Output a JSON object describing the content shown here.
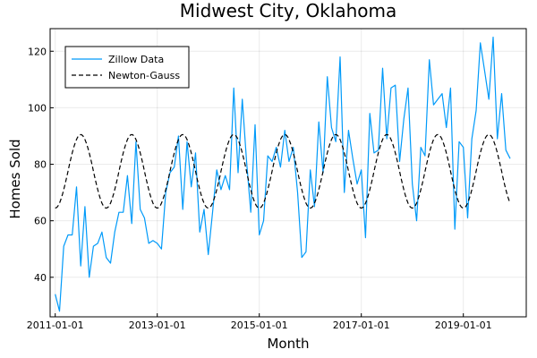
{
  "chart_data": {
    "type": "line",
    "title": "Midwest City, Oklahoma",
    "xlabel": "Month",
    "ylabel": "Homes Sold",
    "x_start": "2011-01",
    "x_end": "2019-12",
    "xticks": [
      "2011-01-01",
      "2013-01-01",
      "2015-01-01",
      "2017-01-01",
      "2019-01-01"
    ],
    "yticks": [
      40,
      60,
      80,
      100,
      120
    ],
    "ylim": [
      26,
      128
    ],
    "grid": true,
    "legend": "top-left",
    "series": [
      {
        "name": "Zillow Data",
        "color": "#009af9",
        "dash": "solid",
        "x": [
          "2011-01",
          "2011-02",
          "2011-03",
          "2011-04",
          "2011-05",
          "2011-06",
          "2011-07",
          "2011-08",
          "2011-09",
          "2011-10",
          "2011-11",
          "2011-12",
          "2012-01",
          "2012-02",
          "2012-03",
          "2012-04",
          "2012-05",
          "2012-06",
          "2012-07",
          "2012-08",
          "2012-09",
          "2012-10",
          "2012-11",
          "2012-12",
          "2013-01",
          "2013-02",
          "2013-03",
          "2013-04",
          "2013-05",
          "2013-06",
          "2013-07",
          "2013-08",
          "2013-09",
          "2013-10",
          "2013-11",
          "2013-12",
          "2014-01",
          "2014-02",
          "2014-03",
          "2014-04",
          "2014-05",
          "2014-06",
          "2014-07",
          "2014-08",
          "2014-09",
          "2014-10",
          "2014-11",
          "2014-12",
          "2015-01",
          "2015-02",
          "2015-03",
          "2015-04",
          "2015-05",
          "2015-06",
          "2015-07",
          "2015-08",
          "2015-09",
          "2015-10",
          "2015-11",
          "2015-12",
          "2016-01",
          "2016-02",
          "2016-03",
          "2016-04",
          "2016-05",
          "2016-06",
          "2016-07",
          "2016-08",
          "2016-09",
          "2016-10",
          "2016-11",
          "2016-12",
          "2017-01",
          "2017-02",
          "2017-03",
          "2017-04",
          "2017-05",
          "2017-06",
          "2017-07",
          "2017-08",
          "2017-09",
          "2017-10",
          "2017-11",
          "2017-12",
          "2018-01",
          "2018-02",
          "2018-03",
          "2018-04",
          "2018-05",
          "2018-06",
          "2018-07",
          "2018-08",
          "2018-09",
          "2018-10",
          "2018-11",
          "2018-12",
          "2019-01",
          "2019-02",
          "2019-03",
          "2019-04",
          "2019-05",
          "2019-06",
          "2019-07",
          "2019-08",
          "2019-09",
          "2019-10",
          "2019-11",
          "2019-12"
        ],
        "y": [
          34,
          28,
          51,
          55,
          55,
          72,
          44,
          65,
          40,
          51,
          52,
          56,
          47,
          45,
          56,
          63,
          63,
          76,
          59,
          88,
          64,
          61,
          52,
          53,
          52,
          50,
          70,
          77,
          79,
          90,
          64,
          88,
          72,
          84,
          56,
          64,
          48,
          63,
          78,
          71,
          76,
          71,
          107,
          77,
          103,
          81,
          63,
          94,
          55,
          60,
          83,
          81,
          86,
          79,
          92,
          81,
          86,
          70,
          47,
          49,
          78,
          65,
          95,
          77,
          111,
          93,
          88,
          118,
          70,
          92,
          82,
          73,
          78,
          54,
          98,
          84,
          85,
          114,
          89,
          107,
          108,
          81,
          96,
          107,
          73,
          60,
          86,
          83,
          117,
          101,
          103,
          105,
          93,
          107,
          57,
          88,
          86,
          61,
          89,
          99,
          123,
          113,
          103,
          125,
          89,
          105,
          85,
          82
        ]
      },
      {
        "name": "Newton-Gauss",
        "color": "#000000",
        "dash": "dashed",
        "model": {
          "mean": 77.5,
          "amplitude": 13,
          "period_months": 12,
          "peak_month": 6
        },
        "x_start": "2011-01",
        "x_end": "2019-12"
      }
    ]
  }
}
